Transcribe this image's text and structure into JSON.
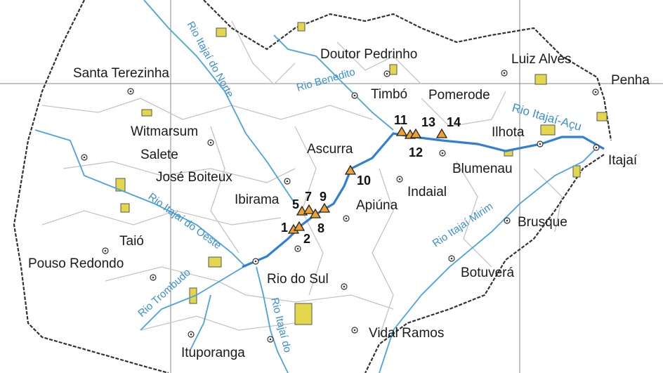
{
  "colors": {
    "main_river": "#2f7fd6",
    "tributary": "#4aa3e0",
    "boundary": "#b5b5b5",
    "basin_edge": "#333333",
    "protected_area": "#e3d64a",
    "site_marker": "#f0a030",
    "grid": "#888888"
  },
  "cities": [
    "Santa Terezinha",
    "Witmarsum",
    "Salete",
    "José Boiteux",
    "Ibirama",
    "Taió",
    "Pouso Redondo",
    "Rio do Sul",
    "Ituporanga",
    "Vidal Ramos",
    "Botuverá",
    "Brusque",
    "Apiúna",
    "Indaial",
    "Ascurra",
    "Blumenau",
    "Ilhota",
    "Itajaí",
    "Penha",
    "Luiz Alves",
    "Pomerode",
    "Timbó",
    "Doutor Pedrinho"
  ],
  "rivers": [
    "Rio Itajaí do Norte",
    "Rio Benedito",
    "Rio Itajaí do Oeste",
    "Rio Trombudo",
    "Rio Itajaí do",
    "Rio Itajaí Mirim",
    "Rio Itajaí-Açu"
  ],
  "sites": [
    "1",
    "2",
    "5",
    "7",
    "8",
    "9",
    "10",
    "11",
    "12",
    "13",
    "14"
  ],
  "marker_icon": "triangle-icon",
  "town_icon": "circled-dot-icon"
}
